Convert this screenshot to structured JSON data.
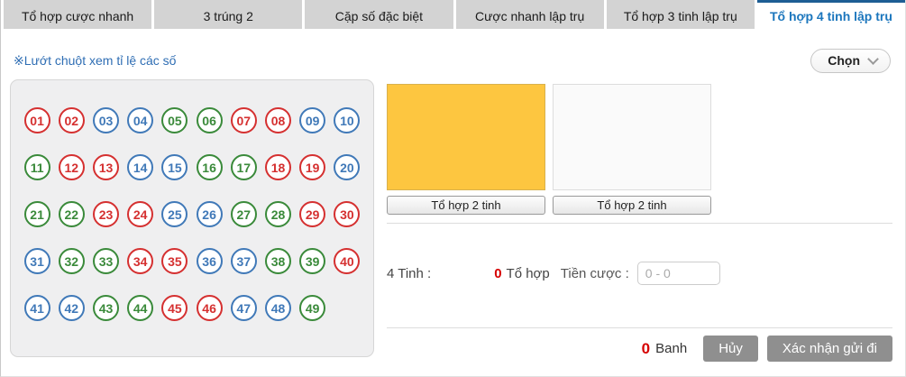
{
  "tabs": [
    {
      "label": "Tổ hợp cược nhanh",
      "active": false
    },
    {
      "label": "3 trúng 2",
      "active": false
    },
    {
      "label": "Cặp số đặc biệt",
      "active": false
    },
    {
      "label": "Cược nhanh lập trụ",
      "active": false
    },
    {
      "label": "Tổ hợp 3 tinh lập trụ",
      "active": false
    },
    {
      "label": "Tổ hợp 4 tinh lập trụ",
      "active": true
    }
  ],
  "toolbar": {
    "note": "※Lướt chuột xem tỉ lệ các số",
    "select_label": "Chọn",
    "select_icon": "chevron-down"
  },
  "ball_colors": {
    "red": "#d53030",
    "blue": "#4079b8",
    "green": "#3a8a3a"
  },
  "balls": [
    {
      "n": "01",
      "c": "red"
    },
    {
      "n": "02",
      "c": "red"
    },
    {
      "n": "03",
      "c": "blue"
    },
    {
      "n": "04",
      "c": "blue"
    },
    {
      "n": "05",
      "c": "green"
    },
    {
      "n": "06",
      "c": "green"
    },
    {
      "n": "07",
      "c": "red"
    },
    {
      "n": "08",
      "c": "red"
    },
    {
      "n": "09",
      "c": "blue"
    },
    {
      "n": "10",
      "c": "blue"
    },
    {
      "n": "11",
      "c": "green"
    },
    {
      "n": "12",
      "c": "red"
    },
    {
      "n": "13",
      "c": "red"
    },
    {
      "n": "14",
      "c": "blue"
    },
    {
      "n": "15",
      "c": "blue"
    },
    {
      "n": "16",
      "c": "green"
    },
    {
      "n": "17",
      "c": "green"
    },
    {
      "n": "18",
      "c": "red"
    },
    {
      "n": "19",
      "c": "red"
    },
    {
      "n": "20",
      "c": "blue"
    },
    {
      "n": "21",
      "c": "green"
    },
    {
      "n": "22",
      "c": "green"
    },
    {
      "n": "23",
      "c": "red"
    },
    {
      "n": "24",
      "c": "red"
    },
    {
      "n": "25",
      "c": "blue"
    },
    {
      "n": "26",
      "c": "blue"
    },
    {
      "n": "27",
      "c": "green"
    },
    {
      "n": "28",
      "c": "green"
    },
    {
      "n": "29",
      "c": "red"
    },
    {
      "n": "30",
      "c": "red"
    },
    {
      "n": "31",
      "c": "blue"
    },
    {
      "n": "32",
      "c": "green"
    },
    {
      "n": "33",
      "c": "green"
    },
    {
      "n": "34",
      "c": "red"
    },
    {
      "n": "35",
      "c": "red"
    },
    {
      "n": "36",
      "c": "blue"
    },
    {
      "n": "37",
      "c": "blue"
    },
    {
      "n": "38",
      "c": "green"
    },
    {
      "n": "39",
      "c": "green"
    },
    {
      "n": "40",
      "c": "red"
    },
    {
      "n": "41",
      "c": "blue"
    },
    {
      "n": "42",
      "c": "blue"
    },
    {
      "n": "43",
      "c": "green"
    },
    {
      "n": "44",
      "c": "green"
    },
    {
      "n": "45",
      "c": "red"
    },
    {
      "n": "46",
      "c": "red"
    },
    {
      "n": "47",
      "c": "blue"
    },
    {
      "n": "48",
      "c": "blue"
    },
    {
      "n": "49",
      "c": "green"
    }
  ],
  "panels": [
    {
      "label": "Tổ hợp 2 tinh",
      "fill": "#fdc640",
      "selected": true
    },
    {
      "label": "Tổ hợp 2 tinh",
      "fill": "#fafafa",
      "selected": false
    }
  ],
  "bet": {
    "type_label": "4 Tinh :",
    "combo_count": "0",
    "combo_unit": "Tổ hợp",
    "amount_label": "Tiền cược :",
    "amount_value": "0 - 0"
  },
  "footer": {
    "count": "0",
    "count_unit": "Banh",
    "cancel_label": "Hủy",
    "confirm_label": "Xác nhận gửi đi"
  },
  "colors": {
    "accent_blue": "#1b76bd",
    "active_tab_border": "#1e5e94",
    "highlight_yellow": "#fdc640",
    "alert_red": "#d60000",
    "button_gray": "#8f8f8f"
  }
}
